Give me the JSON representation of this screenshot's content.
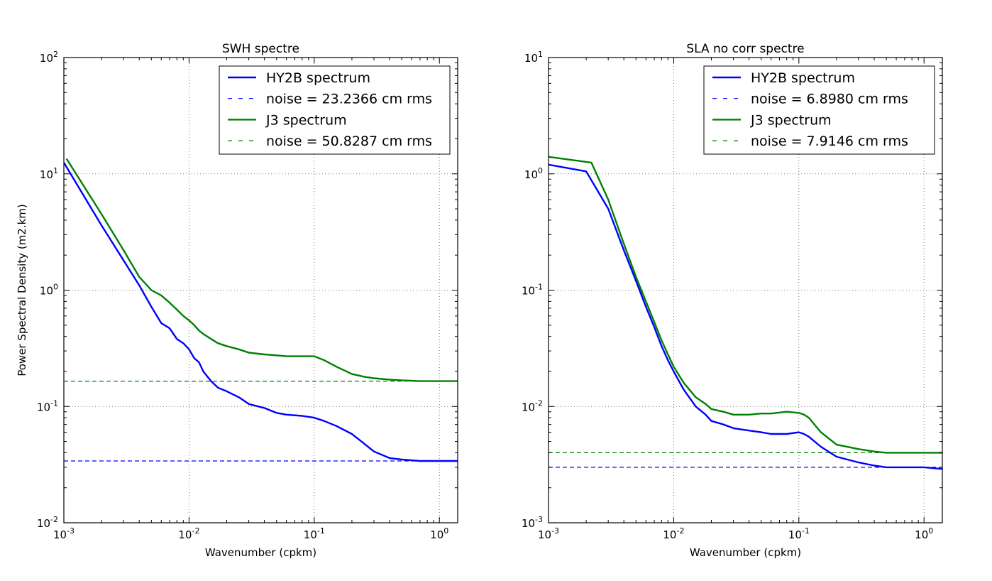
{
  "chart_data": [
    {
      "type": "line",
      "title": "SWH spectre",
      "xlabel": "Wavenumber (cpkm)",
      "ylabel": "Power Spectral Density (m2.km)",
      "x_scale": "log",
      "y_scale": "log",
      "xlim": [
        0.001,
        1.4
      ],
      "ylim": [
        0.01,
        100
      ],
      "x_ticks": [
        0.001,
        0.01,
        0.1,
        1
      ],
      "x_tick_labels": [
        {
          "base": "10",
          "exp": "-3"
        },
        {
          "base": "10",
          "exp": "-2"
        },
        {
          "base": "10",
          "exp": "-1"
        },
        {
          "base": "10",
          "exp": "0"
        }
      ],
      "y_ticks": [
        0.01,
        0.1,
        1,
        10,
        100
      ],
      "y_tick_labels": [
        {
          "base": "10",
          "exp": "-2"
        },
        {
          "base": "10",
          "exp": "-1"
        },
        {
          "base": "10",
          "exp": "0"
        },
        {
          "base": "10",
          "exp": "1"
        },
        {
          "base": "10",
          "exp": "2"
        }
      ],
      "grid": true,
      "legend_position": "top-right",
      "series": [
        {
          "name": "HY2B spectrum",
          "color": "#0000ff",
          "style": "solid",
          "x": [
            0.001,
            0.002,
            0.003,
            0.004,
            0.005,
            0.006,
            0.007,
            0.008,
            0.009,
            0.01,
            0.011,
            0.012,
            0.013,
            0.015,
            0.017,
            0.02,
            0.025,
            0.03,
            0.04,
            0.05,
            0.06,
            0.08,
            0.1,
            0.12,
            0.15,
            0.2,
            0.25,
            0.3,
            0.4,
            0.5,
            0.7,
            1.0,
            1.4
          ],
          "y": [
            12.5,
            3.6,
            1.8,
            1.1,
            0.72,
            0.52,
            0.47,
            0.38,
            0.35,
            0.31,
            0.26,
            0.24,
            0.2,
            0.165,
            0.145,
            0.135,
            0.12,
            0.105,
            0.097,
            0.088,
            0.085,
            0.083,
            0.08,
            0.075,
            0.068,
            0.058,
            0.048,
            0.041,
            0.036,
            0.035,
            0.034,
            0.034,
            0.034
          ]
        },
        {
          "name": "noise = 23.2366 cm rms",
          "color": "#0000ff",
          "style": "dashed",
          "x": [
            0.001,
            1.4
          ],
          "y": [
            0.034,
            0.034
          ]
        },
        {
          "name": "J3 spectrum",
          "color": "#008000",
          "style": "solid",
          "x": [
            0.00105,
            0.002,
            0.003,
            0.004,
            0.005,
            0.006,
            0.007,
            0.008,
            0.009,
            0.01,
            0.011,
            0.012,
            0.013,
            0.015,
            0.017,
            0.02,
            0.025,
            0.03,
            0.04,
            0.05,
            0.06,
            0.08,
            0.1,
            0.12,
            0.15,
            0.2,
            0.25,
            0.3,
            0.4,
            0.5,
            0.7,
            1.0,
            1.4
          ],
          "y": [
            13.5,
            4.5,
            2.2,
            1.3,
            1.0,
            0.9,
            0.78,
            0.68,
            0.6,
            0.55,
            0.5,
            0.45,
            0.42,
            0.38,
            0.35,
            0.33,
            0.31,
            0.29,
            0.28,
            0.275,
            0.27,
            0.27,
            0.27,
            0.25,
            0.22,
            0.19,
            0.18,
            0.175,
            0.17,
            0.168,
            0.165,
            0.165,
            0.165
          ]
        },
        {
          "name": "noise = 50.8287 cm rms",
          "color": "#008000",
          "style": "dashed",
          "x": [
            0.001,
            1.4
          ],
          "y": [
            0.165,
            0.165
          ]
        }
      ]
    },
    {
      "type": "line",
      "title": "SLA no corr spectre",
      "xlabel": "Wavenumber (cpkm)",
      "ylabel": "",
      "x_scale": "log",
      "y_scale": "log",
      "xlim": [
        0.001,
        1.4
      ],
      "ylim": [
        0.001,
        10
      ],
      "x_ticks": [
        0.001,
        0.01,
        0.1,
        1
      ],
      "x_tick_labels": [
        {
          "base": "10",
          "exp": "-3"
        },
        {
          "base": "10",
          "exp": "-2"
        },
        {
          "base": "10",
          "exp": "-1"
        },
        {
          "base": "10",
          "exp": "0"
        }
      ],
      "y_ticks": [
        0.001,
        0.01,
        0.1,
        1,
        10
      ],
      "y_tick_labels": [
        {
          "base": "10",
          "exp": "-3"
        },
        {
          "base": "10",
          "exp": "-2"
        },
        {
          "base": "10",
          "exp": "-1"
        },
        {
          "base": "10",
          "exp": "0"
        },
        {
          "base": "10",
          "exp": "1"
        }
      ],
      "grid": true,
      "legend_position": "top-right",
      "series": [
        {
          "name": "HY2B spectrum",
          "color": "#0000ff",
          "style": "solid",
          "x": [
            0.001,
            0.002,
            0.003,
            0.004,
            0.005,
            0.006,
            0.007,
            0.008,
            0.009,
            0.01,
            0.012,
            0.015,
            0.018,
            0.02,
            0.025,
            0.03,
            0.04,
            0.05,
            0.06,
            0.08,
            0.1,
            0.11,
            0.12,
            0.15,
            0.2,
            0.3,
            0.4,
            0.5,
            0.7,
            1.0,
            1.4
          ],
          "y": [
            1.2,
            1.05,
            0.5,
            0.22,
            0.12,
            0.072,
            0.048,
            0.033,
            0.025,
            0.02,
            0.014,
            0.01,
            0.0085,
            0.0075,
            0.007,
            0.0065,
            0.0062,
            0.006,
            0.0058,
            0.0058,
            0.006,
            0.0058,
            0.0055,
            0.0045,
            0.0037,
            0.0033,
            0.0031,
            0.003,
            0.003,
            0.003,
            0.0029
          ]
        },
        {
          "name": "noise = 6.8980 cm rms",
          "color": "#0000ff",
          "style": "dashed",
          "x": [
            0.001,
            1.4
          ],
          "y": [
            0.003,
            0.003
          ]
        },
        {
          "name": "J3 spectrum",
          "color": "#008000",
          "style": "solid",
          "x": [
            0.001,
            0.0022,
            0.003,
            0.004,
            0.005,
            0.006,
            0.007,
            0.008,
            0.009,
            0.01,
            0.012,
            0.015,
            0.018,
            0.02,
            0.025,
            0.03,
            0.04,
            0.05,
            0.06,
            0.08,
            0.1,
            0.11,
            0.12,
            0.15,
            0.2,
            0.3,
            0.4,
            0.5,
            0.7,
            1.0,
            1.4
          ],
          "y": [
            1.4,
            1.25,
            0.6,
            0.25,
            0.13,
            0.08,
            0.053,
            0.037,
            0.028,
            0.022,
            0.016,
            0.012,
            0.0105,
            0.0095,
            0.009,
            0.0085,
            0.0085,
            0.0087,
            0.0087,
            0.009,
            0.0088,
            0.0085,
            0.008,
            0.006,
            0.0047,
            0.0043,
            0.0041,
            0.004,
            0.004,
            0.004,
            0.004
          ]
        },
        {
          "name": "noise = 7.9146 cm rms",
          "color": "#008000",
          "style": "dashed",
          "x": [
            0.001,
            1.4
          ],
          "y": [
            0.004,
            0.004
          ]
        }
      ]
    }
  ]
}
